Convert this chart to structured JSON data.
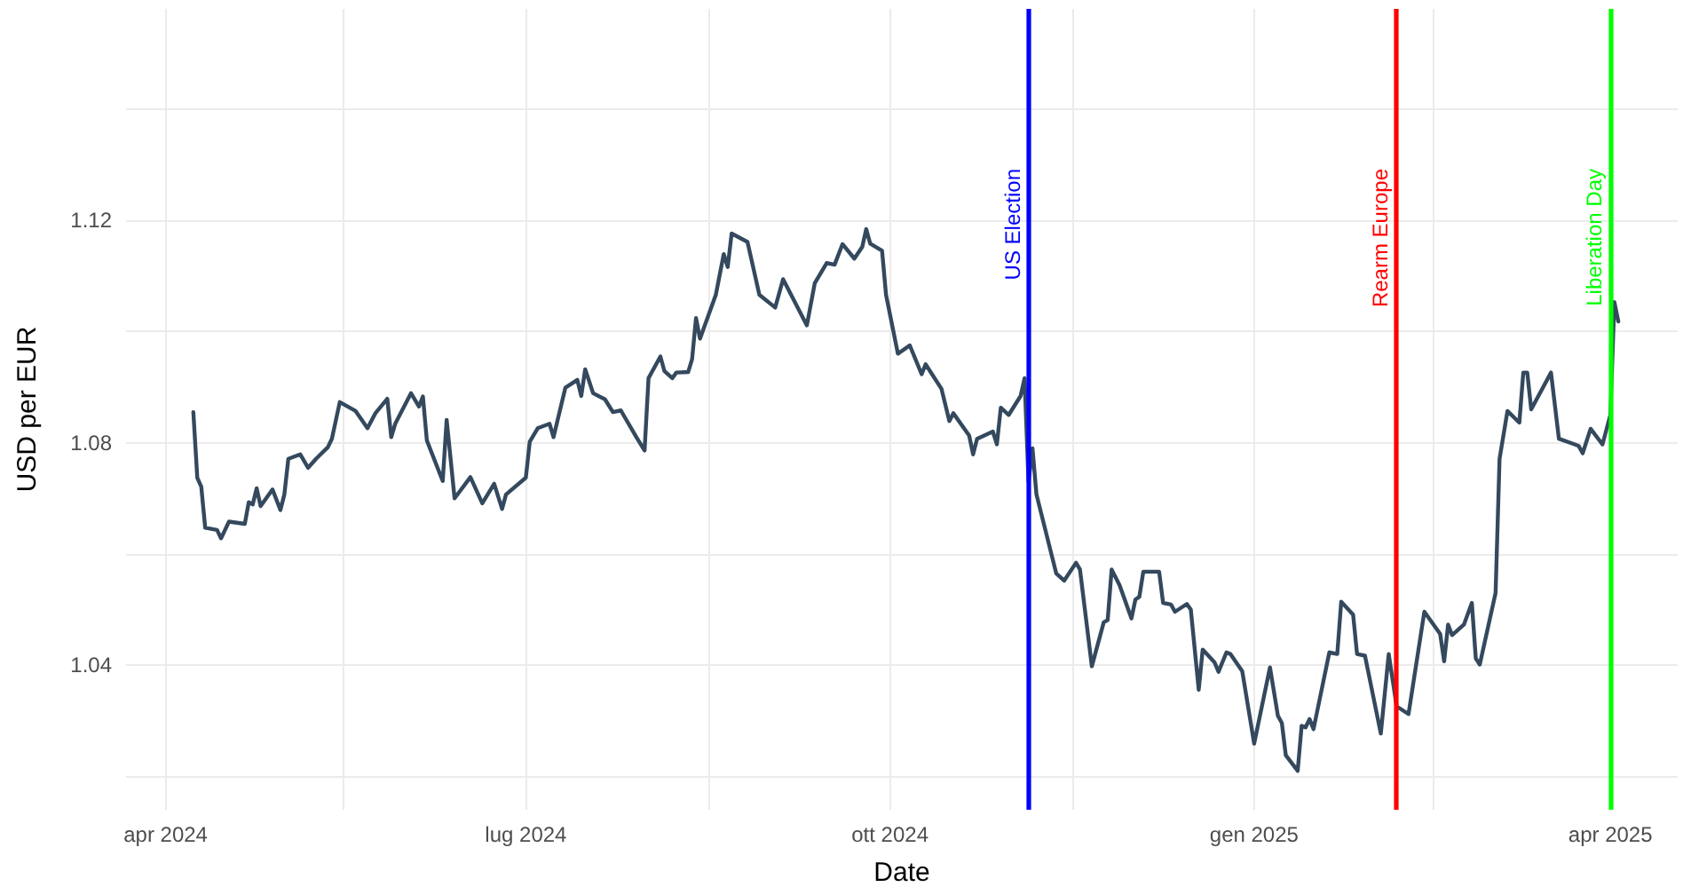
{
  "chart_data": {
    "type": "line",
    "xlabel": "Date",
    "ylabel": "USD per EUR",
    "x": [
      "2024-04-08",
      "2024-04-09",
      "2024-04-10",
      "2024-04-11",
      "2024-04-14",
      "2024-04-15",
      "2024-04-17",
      "2024-04-21",
      "2024-04-22",
      "2024-04-23",
      "2024-04-24",
      "2024-04-25",
      "2024-04-28",
      "2024-04-30",
      "2024-05-01",
      "2024-05-02",
      "2024-05-05",
      "2024-05-07",
      "2024-05-09",
      "2024-05-12",
      "2024-05-13",
      "2024-05-15",
      "2024-05-19",
      "2024-05-22",
      "2024-05-24",
      "2024-05-27",
      "2024-05-28",
      "2024-05-29",
      "2024-06-02",
      "2024-06-04",
      "2024-06-05",
      "2024-06-06",
      "2024-06-10",
      "2024-06-11",
      "2024-06-13",
      "2024-06-17",
      "2024-06-20",
      "2024-06-23",
      "2024-06-25",
      "2024-06-26",
      "2024-07-01",
      "2024-07-02",
      "2024-07-04",
      "2024-07-07",
      "2024-07-08",
      "2024-07-11",
      "2024-07-14",
      "2024-07-15",
      "2024-07-16",
      "2024-07-18",
      "2024-07-21",
      "2024-07-23",
      "2024-07-25",
      "2024-07-29",
      "2024-07-31",
      "2024-08-01",
      "2024-08-04",
      "2024-08-05",
      "2024-08-07",
      "2024-08-08",
      "2024-08-11",
      "2024-08-12",
      "2024-08-13",
      "2024-08-14",
      "2024-08-18",
      "2024-08-20",
      "2024-08-21",
      "2024-08-22",
      "2024-08-26",
      "2024-08-29",
      "2024-09-02",
      "2024-09-04",
      "2024-09-10",
      "2024-09-12",
      "2024-09-15",
      "2024-09-17",
      "2024-09-19",
      "2024-09-22",
      "2024-09-24",
      "2024-09-25",
      "2024-09-26",
      "2024-09-29",
      "2024-09-30",
      "2024-10-03",
      "2024-10-06",
      "2024-10-09",
      "2024-10-10",
      "2024-10-14",
      "2024-10-16",
      "2024-10-17",
      "2024-10-21",
      "2024-10-22",
      "2024-10-23",
      "2024-10-27",
      "2024-10-28",
      "2024-10-29",
      "2024-10-31",
      "2024-11-03",
      "2024-11-04",
      "2024-11-05",
      "2024-11-06",
      "2024-11-07",
      "2024-11-12",
      "2024-11-14",
      "2024-11-17",
      "2024-11-18",
      "2024-11-21",
      "2024-11-24",
      "2024-11-25",
      "2024-11-26",
      "2024-11-28",
      "2024-12-01",
      "2024-12-02",
      "2024-12-03",
      "2024-12-04",
      "2024-12-08",
      "2024-12-09",
      "2024-12-11",
      "2024-12-12",
      "2024-12-15",
      "2024-12-16",
      "2024-12-18",
      "2024-12-19",
      "2024-12-22",
      "2024-12-23",
      "2024-12-25",
      "2024-12-26",
      "2024-12-29",
      "2025-01-01",
      "2025-01-05",
      "2025-01-07",
      "2025-01-08",
      "2025-01-09",
      "2025-01-12",
      "2025-01-13",
      "2025-01-14",
      "2025-01-15",
      "2025-01-16",
      "2025-01-20",
      "2025-01-22",
      "2025-01-23",
      "2025-01-26",
      "2025-01-27",
      "2025-01-29",
      "2025-02-02",
      "2025-02-04",
      "2025-02-06",
      "2025-02-09",
      "2025-02-13",
      "2025-02-17",
      "2025-02-18",
      "2025-02-19",
      "2025-02-20",
      "2025-02-23",
      "2025-02-25",
      "2025-02-26",
      "2025-02-27",
      "2025-03-03",
      "2025-03-04",
      "2025-03-06",
      "2025-03-09",
      "2025-03-10",
      "2025-03-11",
      "2025-03-12",
      "2025-03-17",
      "2025-03-19",
      "2025-03-23",
      "2025-03-24",
      "2025-03-25",
      "2025-03-27",
      "2025-03-30",
      "2025-04-01",
      "2025-04-02",
      "2025-04-03"
    ],
    "series": [
      {
        "color": "#34495e",
        "values": [
          1.0855,
          1.0737,
          1.0721,
          1.0647,
          1.0643,
          1.0628,
          1.0658,
          1.0654,
          1.0693,
          1.0689,
          1.0718,
          1.0686,
          1.0716,
          1.0679,
          1.0707,
          1.0771,
          1.0779,
          1.0755,
          1.0771,
          1.0792,
          1.0807,
          1.0873,
          1.0857,
          1.0826,
          1.0853,
          1.0879,
          1.081,
          1.0834,
          1.0889,
          1.0865,
          1.0883,
          1.0804,
          1.0731,
          1.0841,
          1.07,
          1.0738,
          1.0691,
          1.0726,
          1.0681,
          1.0707,
          1.0737,
          1.0802,
          1.0826,
          1.0834,
          1.081,
          1.0899,
          1.0913,
          1.0884,
          1.0932,
          1.0889,
          1.0878,
          1.0855,
          1.0858,
          1.0809,
          1.0786,
          1.0916,
          1.0955,
          1.0929,
          1.0916,
          1.0926,
          1.0927,
          1.095,
          1.1024,
          1.0987,
          1.1066,
          1.1139,
          1.1116,
          1.1176,
          1.1161,
          1.1066,
          1.1043,
          1.1094,
          1.1011,
          1.1087,
          1.1123,
          1.112,
          1.1157,
          1.1131,
          1.1152,
          1.1184,
          1.1158,
          1.1145,
          1.1066,
          1.096,
          1.0975,
          1.0923,
          1.0941,
          1.0897,
          1.0839,
          1.0853,
          1.0813,
          1.0779,
          1.0807,
          1.082,
          1.0797,
          1.0863,
          1.085,
          1.0884,
          1.0916,
          1.073,
          1.079,
          1.0707,
          1.0565,
          1.0552,
          1.0584,
          1.0572,
          1.0398,
          1.0477,
          1.0481,
          1.0572,
          1.0544,
          1.0484,
          1.0518,
          1.0523,
          1.0568,
          1.0568,
          1.0512,
          1.0509,
          1.0496,
          1.051,
          1.05,
          1.0356,
          1.0428,
          1.0405,
          1.0388,
          1.0423,
          1.042,
          1.0389,
          1.0259,
          1.0396,
          1.0309,
          1.0296,
          1.0238,
          1.021,
          1.0291,
          1.0288,
          1.0303,
          1.0285,
          1.0423,
          1.042,
          1.0514,
          1.0491,
          1.042,
          1.0417,
          1.0277,
          1.042,
          1.0326,
          1.0312,
          1.0496,
          1.0456,
          1.0407,
          1.0473,
          1.0454,
          1.0473,
          1.0512,
          1.0412,
          1.0401,
          1.053,
          1.0771,
          1.0857,
          1.0836,
          1.0926,
          1.0926,
          1.086,
          1.0926,
          1.0807,
          1.0797,
          1.0794,
          1.0781,
          1.0825,
          1.0797,
          1.085,
          1.1053,
          1.1018
        ]
      }
    ],
    "xlim": [
      "2024-03-22",
      "2025-04-18"
    ],
    "xticks": [
      {
        "value": "2024-04-01",
        "label": "apr 2024"
      },
      {
        "value": "2024-05-16",
        "label": null
      },
      {
        "value": "2024-07-01",
        "label": "lug 2024"
      },
      {
        "value": "2024-08-16",
        "label": null
      },
      {
        "value": "2024-10-01",
        "label": "ott 2024"
      },
      {
        "value": "2024-11-16",
        "label": null
      },
      {
        "value": "2025-01-01",
        "label": "gen 2025"
      },
      {
        "value": "2025-02-15",
        "label": null
      },
      {
        "value": "2025-04-01",
        "label": "apr 2025"
      }
    ],
    "ylim": [
      1.014,
      1.158
    ],
    "yticks": [
      {
        "value": 1.02,
        "label": null
      },
      1.04,
      {
        "value": 1.06,
        "label": null
      },
      1.08,
      {
        "value": 1.1,
        "label": null
      },
      1.12,
      {
        "value": 1.14,
        "label": null
      }
    ],
    "ref_lines": [
      {
        "axis": "x",
        "value": "2024-11-05",
        "label": "US Election",
        "color": "#0000ff"
      },
      {
        "axis": "x",
        "value": "2025-02-06",
        "label": "Rearm Europe",
        "color": "#ff0000"
      },
      {
        "axis": "x",
        "value": "2025-04-01",
        "label": "Liberation Day",
        "color": "#00ff00"
      }
    ],
    "grid": true,
    "legend": false,
    "marker": "none",
    "line_style": "solid"
  }
}
